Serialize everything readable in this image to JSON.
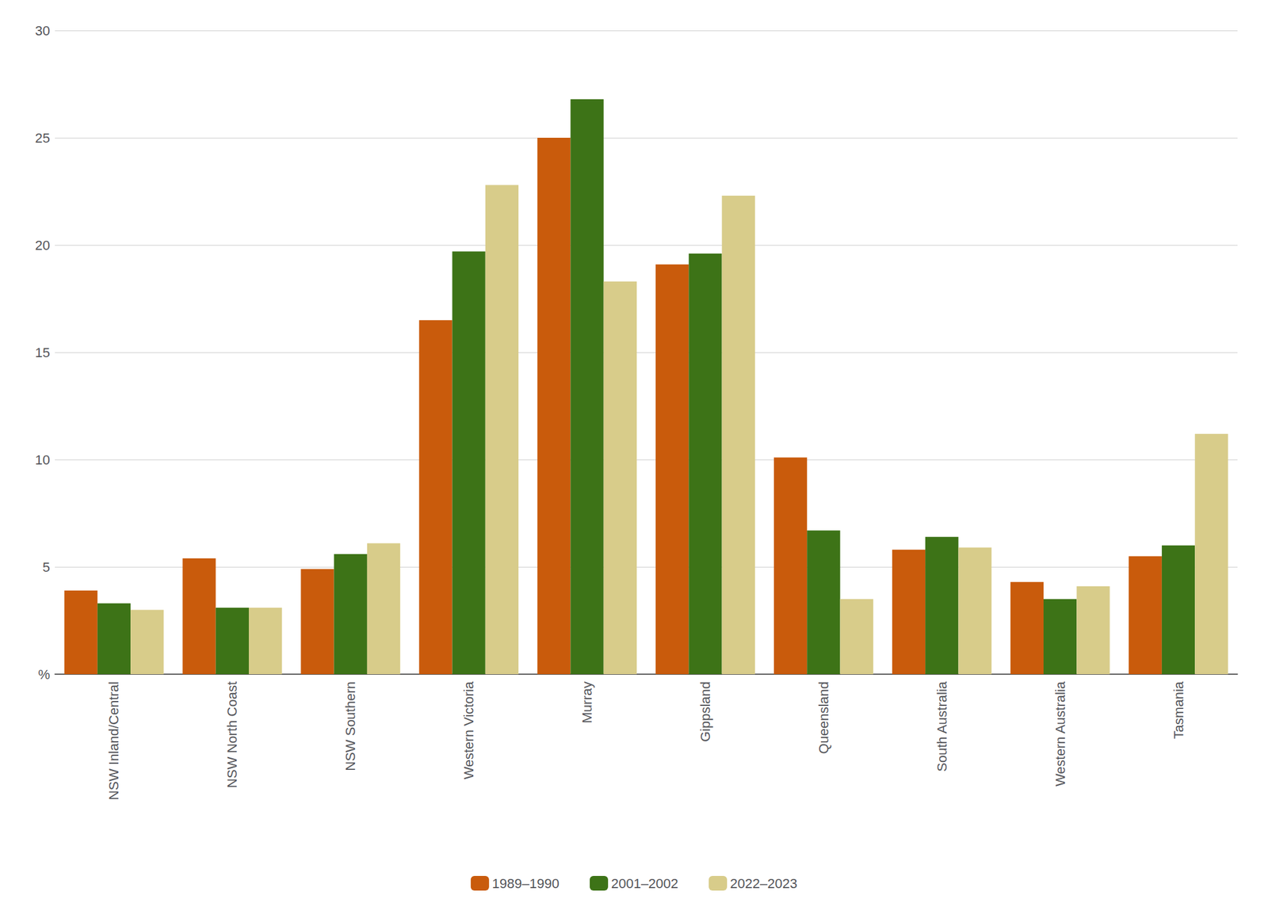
{
  "chart_data": {
    "type": "bar",
    "categories": [
      "NSW Inland/Central",
      "NSW North Coast",
      "NSW Southern",
      "Western Victoria",
      "Murray",
      "Gippsland",
      "Queensland",
      "South Australia",
      "Western Australia",
      "Tasmania"
    ],
    "series": [
      {
        "name": "1989–1990",
        "color": "#C95B0C",
        "values": [
          3.9,
          5.4,
          4.9,
          16.5,
          25.0,
          19.1,
          10.1,
          5.8,
          4.3,
          5.5
        ]
      },
      {
        "name": "2001–2002",
        "color": "#3D7317",
        "values": [
          3.3,
          3.1,
          5.6,
          19.7,
          26.8,
          19.6,
          6.7,
          6.4,
          3.5,
          6.0
        ]
      },
      {
        "name": "2022–2023",
        "color": "#D8CC8A",
        "values": [
          3.0,
          3.1,
          6.1,
          22.8,
          18.3,
          22.3,
          3.5,
          5.9,
          4.1,
          11.2
        ]
      }
    ],
    "ylim": [
      0,
      30
    ],
    "yticks": [
      {
        "value": 0,
        "label": "%"
      },
      5,
      10,
      15,
      20,
      25,
      30
    ],
    "grid": true,
    "legend": "bottom"
  }
}
